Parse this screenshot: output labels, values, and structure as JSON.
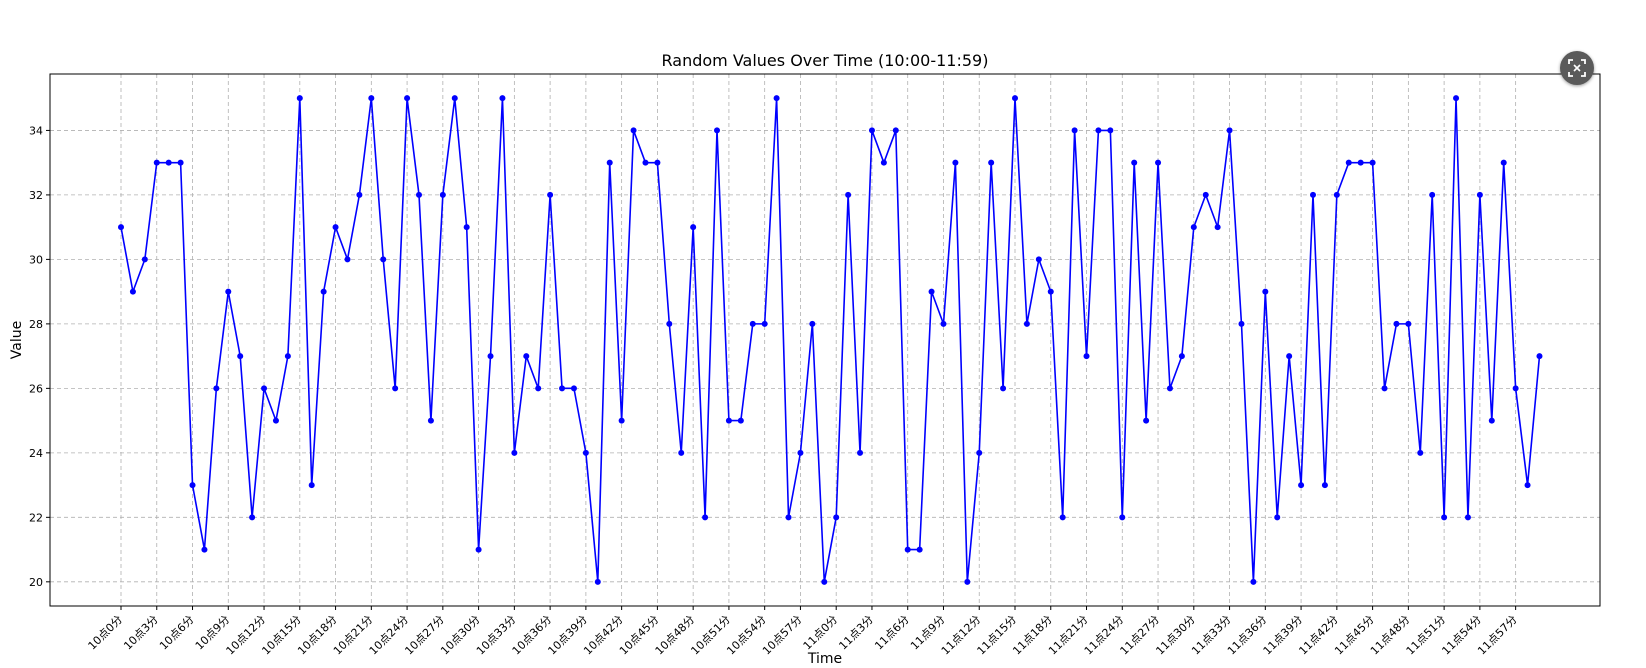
{
  "chart_data": {
    "type": "line",
    "title": "Random Values Over Time (10:00-11:59)",
    "xlabel": "Time",
    "ylabel": "Value",
    "ylim": [
      19.25,
      35.75
    ],
    "yticks": [
      20,
      22,
      24,
      26,
      28,
      30,
      32,
      34
    ],
    "grid": true,
    "x_tick_labels": [
      "10点0分",
      "10点3分",
      "10点6分",
      "10点9分",
      "10点12分",
      "10点15分",
      "10点18分",
      "10点21分",
      "10点24分",
      "10点27分",
      "10点30分",
      "10点33分",
      "10点36分",
      "10点39分",
      "10点42分",
      "10点45分",
      "10点48分",
      "10点51分",
      "10点54分",
      "10点57分",
      "11点0分",
      "11点3分",
      "11点6分",
      "11点9分",
      "11点12分",
      "11点15分",
      "11点18分",
      "11点21分",
      "11点24分",
      "11点27分",
      "11点30分",
      "11点33分",
      "11点36分",
      "11点39分",
      "11点42分",
      "11点45分",
      "11点48分",
      "11点51分",
      "11点54分",
      "11点57分"
    ],
    "series": [
      {
        "color": "#0000ff",
        "marker": "circle",
        "values": [
          31,
          29,
          30,
          33,
          33,
          33,
          23,
          21,
          26,
          29,
          27,
          22,
          26,
          25,
          27,
          35,
          23,
          29,
          31,
          30,
          32,
          35,
          30,
          26,
          35,
          32,
          25,
          32,
          35,
          31,
          21,
          27,
          35,
          24,
          27,
          26,
          32,
          26,
          26,
          24,
          20,
          33,
          25,
          34,
          33,
          33,
          28,
          24,
          31,
          22,
          34,
          25,
          25,
          28,
          28,
          35,
          22,
          24,
          28,
          20,
          22,
          32,
          24,
          34,
          33,
          34,
          21,
          21,
          29,
          28,
          33,
          20,
          24,
          33,
          26,
          35,
          28,
          30,
          29,
          22,
          34,
          27,
          34,
          34,
          22,
          33,
          25,
          33,
          26,
          27,
          31,
          32,
          31,
          34,
          28,
          20,
          29,
          22,
          27,
          23,
          32,
          23,
          32,
          33,
          33,
          33,
          26,
          28,
          28,
          24,
          32,
          22,
          35,
          22,
          32,
          25,
          33,
          26,
          23,
          27
        ]
      }
    ]
  },
  "controls": {
    "exit_icon": "fullscreen-exit-icon"
  }
}
